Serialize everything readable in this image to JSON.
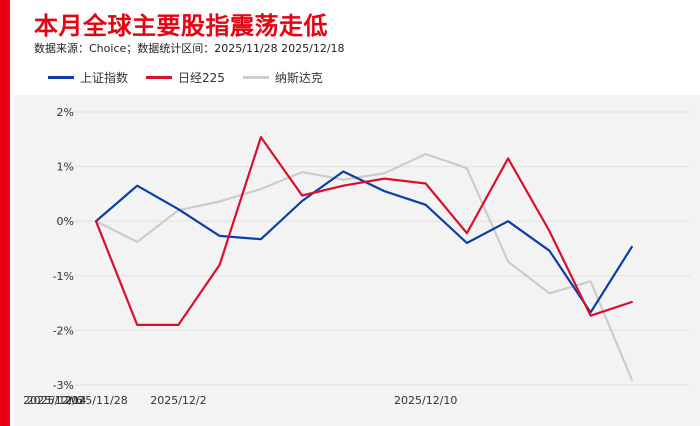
{
  "header": {
    "title": "本月全球主要股指震荡走低",
    "subtitle": "数据来源：Choice；数据统计区间：2025/11/28  2025/12/18"
  },
  "colors": {
    "accent": "#e60012",
    "plot_background": "#f3f3f3",
    "grid": "#e2e2e2"
  },
  "chart_data": {
    "type": "line",
    "title": "本月全球主要股指震荡走低",
    "xlabel": "",
    "ylabel": "",
    "legend_position": "top-left",
    "grid": true,
    "ylim": [
      -3,
      2
    ],
    "y_ticks": [
      2,
      1,
      0,
      -1,
      -2,
      -3
    ],
    "y_tick_labels": [
      "2%",
      "1%",
      "0%",
      "-1%",
      "-2%",
      "-3%"
    ],
    "x_ticks": [
      "2025/11/28",
      "2025/12/2",
      "2025/12/6",
      "2025/12/10",
      "2025/12/14"
    ],
    "x": [
      "2025/11/28",
      "2025/12/1",
      "2025/12/2",
      "2025/12/3",
      "2025/12/4",
      "2025/12/5",
      "2025/12/8",
      "2025/12/9",
      "2025/12/10",
      "2025/12/11",
      "2025/12/12",
      "2025/12/15",
      "2025/12/16",
      "2025/12/17",
      "2025/12/18"
    ],
    "series": [
      {
        "name": "上证指数",
        "color": "#0a3ea8",
        "points": [
          [
            "2025/11/28",
            0.0
          ],
          [
            "2025/12/1",
            0.65
          ],
          [
            "2025/12/2",
            0.22
          ],
          [
            "2025/12/3",
            -0.27
          ],
          [
            "2025/12/4",
            -0.33
          ],
          [
            "2025/12/5",
            0.37
          ],
          [
            "2025/12/8",
            0.91
          ],
          [
            "2025/12/9",
            0.55
          ],
          [
            "2025/12/10",
            0.3
          ],
          [
            "2025/12/11",
            -0.4
          ],
          [
            "2025/12/12",
            0.0
          ],
          [
            "2025/12/15",
            -0.54
          ],
          [
            "2025/12/16",
            -1.67
          ],
          [
            "2025/12/17",
            -0.47
          ]
        ]
      },
      {
        "name": "日经225",
        "color": "#d8102c",
        "points": [
          [
            "2025/11/28",
            0.0
          ],
          [
            "2025/12/1",
            -1.9
          ],
          [
            "2025/12/2",
            -1.9
          ],
          [
            "2025/12/3",
            -0.8
          ],
          [
            "2025/12/4",
            1.54
          ],
          [
            "2025/12/5",
            0.47
          ],
          [
            "2025/12/8",
            0.65
          ],
          [
            "2025/12/9",
            0.78
          ],
          [
            "2025/12/10",
            0.69
          ],
          [
            "2025/12/11",
            -0.22
          ],
          [
            "2025/12/12",
            1.15
          ],
          [
            "2025/12/15",
            -0.18
          ],
          [
            "2025/12/16",
            -1.73
          ],
          [
            "2025/12/17",
            -1.48
          ]
        ]
      },
      {
        "name": "纳斯达克",
        "color": "#cccccc",
        "points": [
          [
            "2025/11/28",
            0.0
          ],
          [
            "2025/12/1",
            -0.38
          ],
          [
            "2025/12/2",
            0.2
          ],
          [
            "2025/12/3",
            0.36
          ],
          [
            "2025/12/4",
            0.59
          ],
          [
            "2025/12/5",
            0.9
          ],
          [
            "2025/12/8",
            0.76
          ],
          [
            "2025/12/9",
            0.88
          ],
          [
            "2025/12/10",
            1.23
          ],
          [
            "2025/12/11",
            0.97
          ],
          [
            "2025/12/12",
            -0.74
          ],
          [
            "2025/12/15",
            -1.32
          ],
          [
            "2025/12/16",
            -1.1
          ],
          [
            "2025/12/17",
            -2.9
          ]
        ]
      }
    ]
  }
}
